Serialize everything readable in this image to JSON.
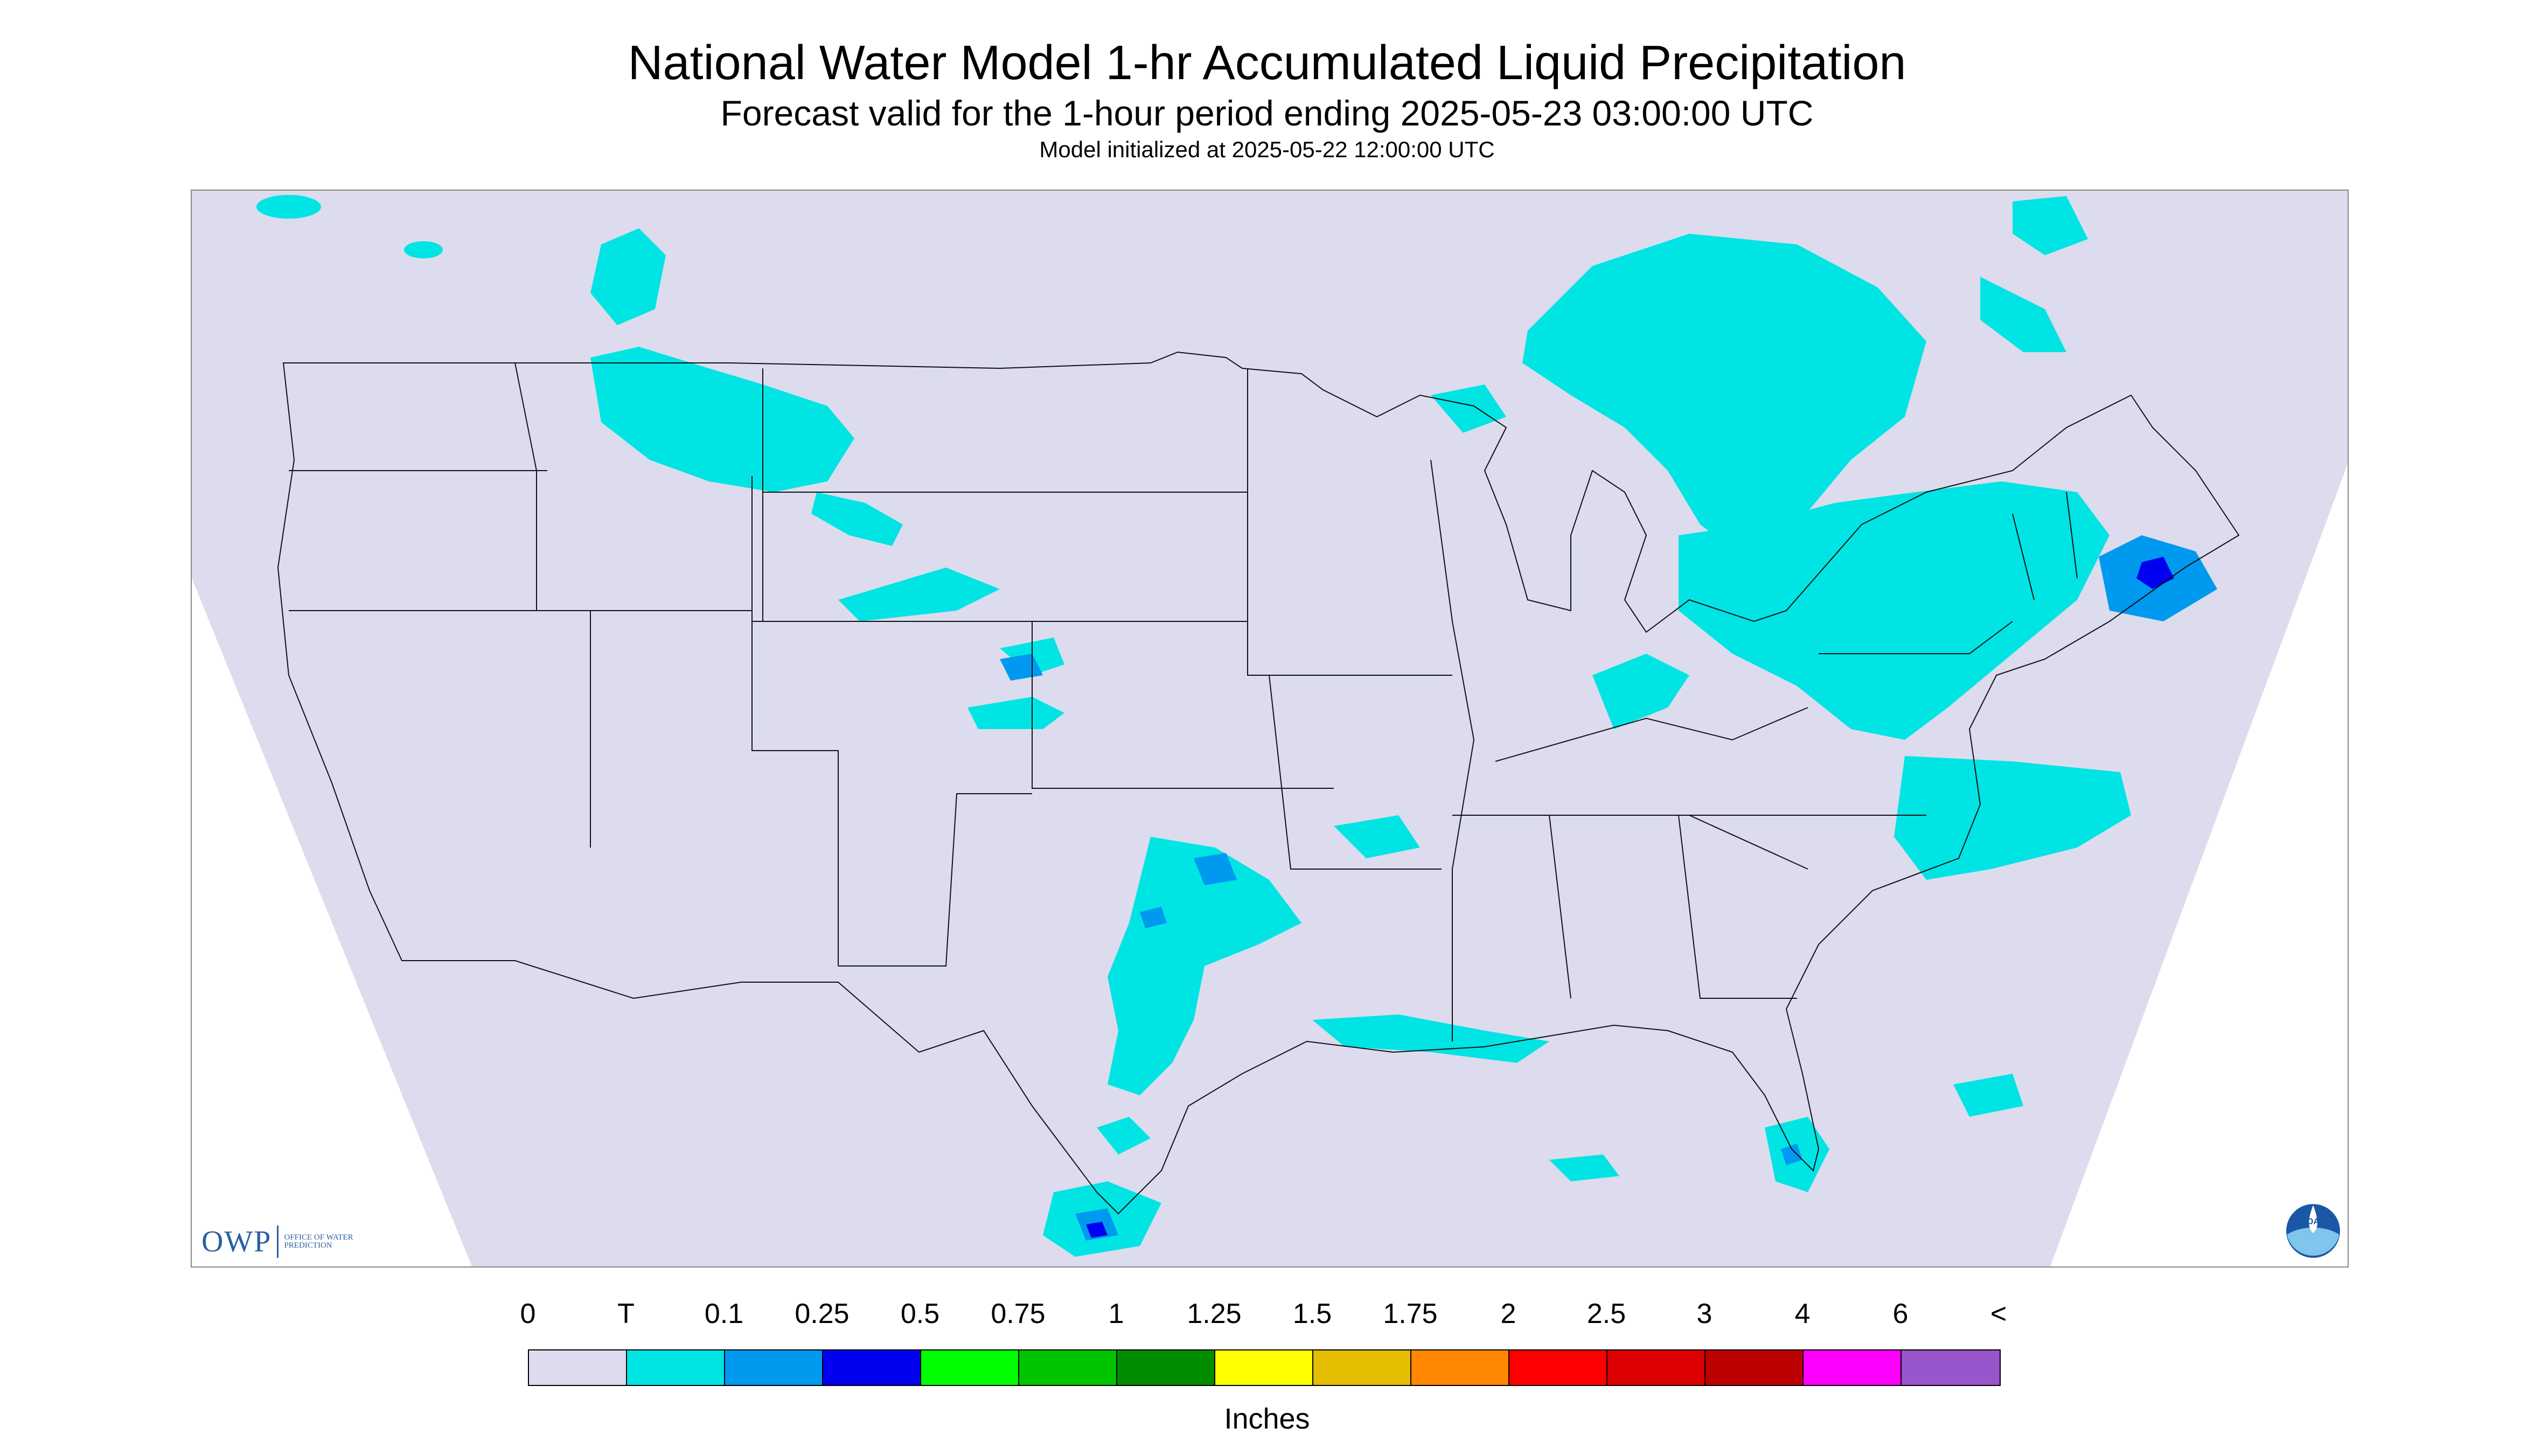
{
  "header": {
    "title": "National Water Model 1-hr Accumulated Liquid Precipitation",
    "subtitle": "Forecast valid for the 1-hour period ending 2025-05-23 03:00:00 UTC",
    "init_line": "Model initialized at 2025-05-22 12:00:00 UTC"
  },
  "map": {
    "region": "Contiguous United States",
    "background_color": "#dcdcee",
    "outside_domain_color": "#ffffff",
    "border_color": "#111111",
    "precip_areas": [
      {
        "region": "Idaho / western Montana",
        "category": "T"
      },
      {
        "region": "Great Lakes / Ontario",
        "category": "T"
      },
      {
        "region": "Northeast / New England",
        "category": "0.1"
      },
      {
        "region": "Southern New England",
        "category": "0.25"
      },
      {
        "region": "Texas / Oklahoma",
        "category": "T"
      },
      {
        "region": "Mid-Atlantic coast / offshore",
        "category": "T"
      },
      {
        "region": "Gulf Coast",
        "category": "T"
      },
      {
        "region": "South Florida",
        "category": "T"
      },
      {
        "region": "Northeast Mexico",
        "category": "T"
      },
      {
        "region": "Kansas",
        "category": "T"
      }
    ]
  },
  "logos": {
    "owp_letters": "OWP",
    "owp_subtext": "OFFICE OF WATER PREDICTION",
    "noaa_text": "NOAA"
  },
  "legend": {
    "tick_labels": [
      "0",
      "T",
      "0.1",
      "0.25",
      "0.5",
      "0.75",
      "1",
      "1.25",
      "1.5",
      "1.75",
      "2",
      "2.5",
      "3",
      "4",
      "6",
      "<"
    ],
    "colors": [
      "#dcdcee",
      "#00e4e4",
      "#0099f0",
      "#0000f0",
      "#00ff00",
      "#00c400",
      "#008c00",
      "#ffff00",
      "#e4bc00",
      "#ff8800",
      "#ff0000",
      "#dc0000",
      "#bc0000",
      "#ff00ff",
      "#9955cc"
    ],
    "units": "Inches"
  }
}
